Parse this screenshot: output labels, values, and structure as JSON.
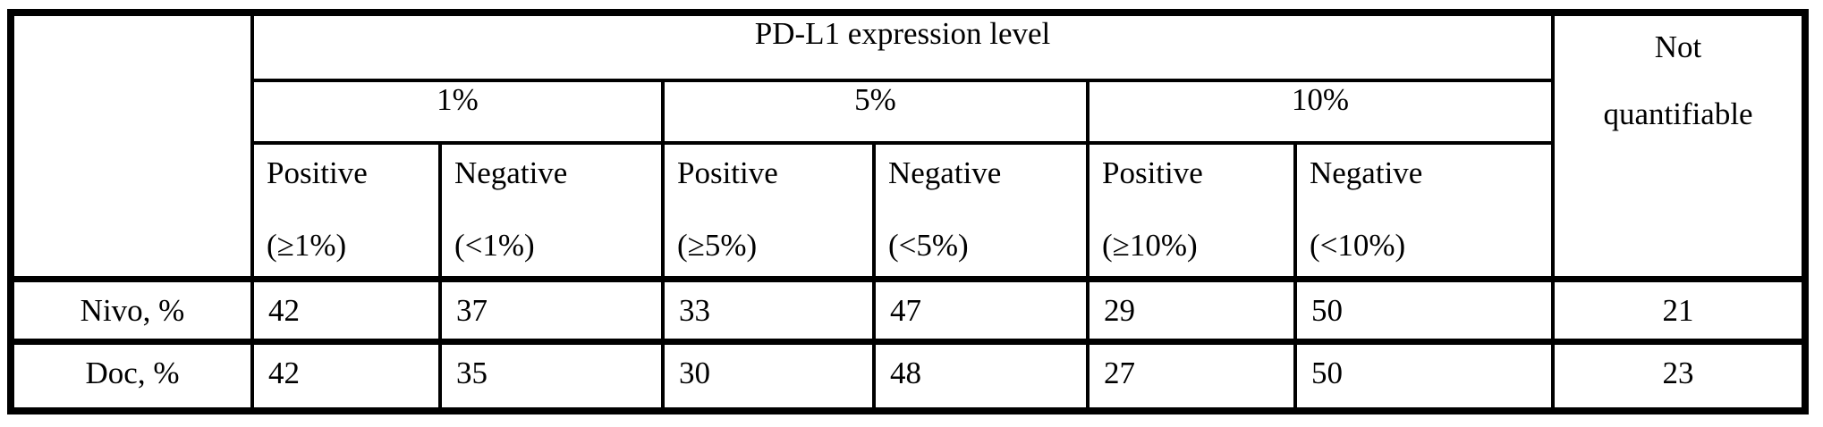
{
  "colors": {
    "border": "#000000",
    "background": "#ffffff",
    "text": "#000000"
  },
  "table": {
    "corner": "",
    "expression_header": "PD-L1 expression level",
    "not_quantifiable_line1": "Not",
    "not_quantifiable_line2": "quantifiable",
    "groups": [
      {
        "cutoff": "1%",
        "positive_label": "Positive",
        "positive_threshold": "(≥1%)",
        "negative_label": "Negative",
        "negative_threshold": "(<1%)"
      },
      {
        "cutoff": "5%",
        "positive_label": "Positive",
        "positive_threshold": "(≥5%)",
        "negative_label": "Negative",
        "negative_threshold": "(<5%)"
      },
      {
        "cutoff": "10%",
        "positive_label": "Positive",
        "positive_threshold": "(≥10%)",
        "negative_label": "Negative",
        "negative_threshold": "(<10%)"
      }
    ],
    "rows": [
      {
        "label": "Nivo, %",
        "values": [
          "42",
          "37",
          "33",
          "47",
          "29",
          "50"
        ],
        "not_quantifiable": "21"
      },
      {
        "label": "Doc, %",
        "values": [
          "42",
          "35",
          "30",
          "48",
          "27",
          "50"
        ],
        "not_quantifiable": "23"
      }
    ]
  },
  "chart_data": {
    "type": "table",
    "title": "PD-L1 expression level",
    "columns": [
      "",
      "Positive (≥1%)",
      "Negative (<1%)",
      "Positive (≥5%)",
      "Negative (<5%)",
      "Positive (≥10%)",
      "Negative (<10%)",
      "Not quantifiable"
    ],
    "rows": [
      {
        "label": "Nivo, %",
        "values": [
          42,
          37,
          33,
          47,
          29,
          50,
          21
        ]
      },
      {
        "label": "Doc, %",
        "values": [
          42,
          35,
          30,
          48,
          27,
          50,
          23
        ]
      }
    ]
  }
}
